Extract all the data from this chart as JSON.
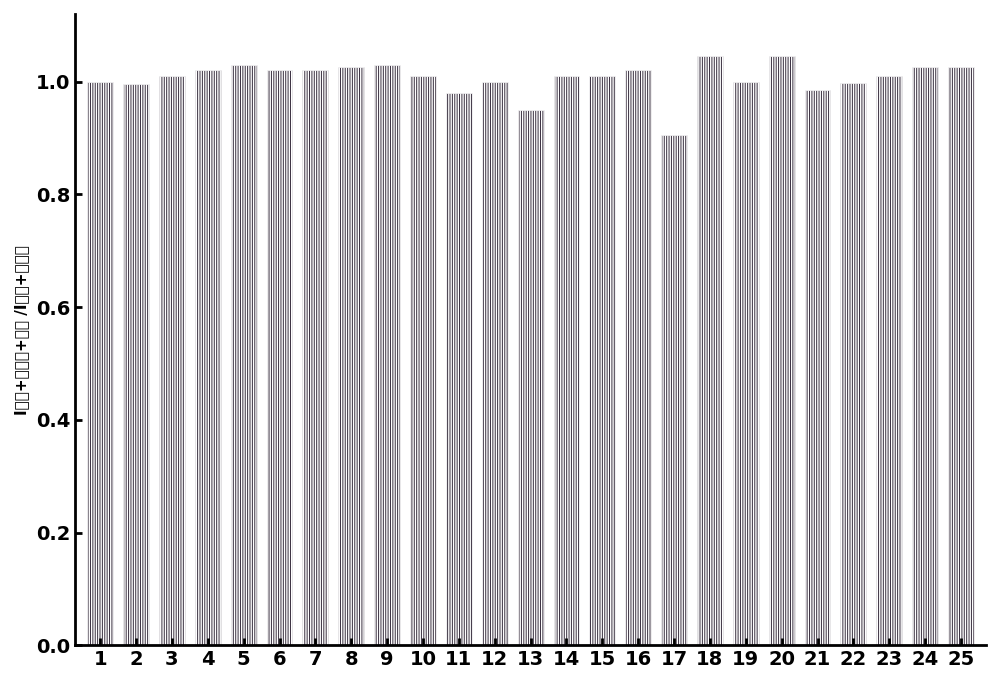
{
  "values": [
    1.0,
    0.995,
    1.01,
    1.02,
    1.03,
    1.02,
    1.02,
    1.025,
    1.03,
    1.01,
    0.98,
    1.0,
    0.95,
    1.01,
    1.01,
    1.02,
    0.905,
    1.045,
    1.0,
    1.045,
    0.985,
    0.998,
    1.01,
    1.025,
    1.025
  ],
  "x_labels": [
    "1",
    "2",
    "3",
    "4",
    "5",
    "6",
    "7",
    "8",
    "9",
    "10",
    "11",
    "12",
    "13",
    "14",
    "15",
    "16",
    "17",
    "18",
    "19",
    "20",
    "21",
    "22",
    "23",
    "24",
    "25"
  ],
  "ylim": [
    0.0,
    1.12
  ],
  "yticks": [
    0.0,
    0.2,
    0.4,
    0.6,
    0.8,
    1.0
  ],
  "bar_color": "#3a3040",
  "bar_edge_color": "#ffffff",
  "figsize": [
    10.0,
    6.83
  ],
  "dpi": 100,
  "hatch": "|||||||",
  "sub1": "探针+苯硫酚+其他",
  "sub2": "探针+苯硫酚"
}
